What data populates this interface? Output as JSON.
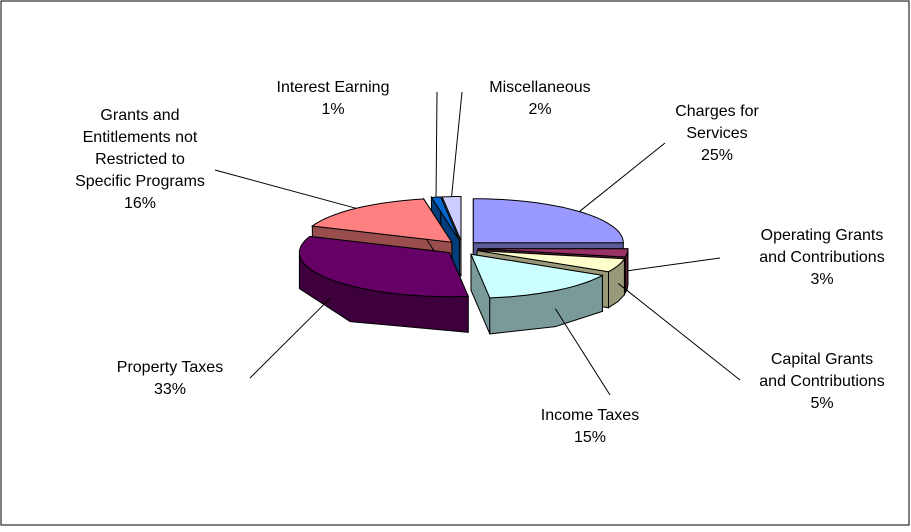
{
  "chart_data": {
    "type": "pie3d",
    "categories": [
      "Charges for Services",
      "Operating Grants and Contributions",
      "Capital Grants and Contributions",
      "Income Taxes",
      "Property Taxes",
      "Grants and Entitlements not Restricted to Specific Programs",
      "Interest Earning",
      "Miscellaneous"
    ],
    "values": [
      25,
      3,
      5,
      15,
      33,
      16,
      1,
      2
    ],
    "value_labels": [
      "25%",
      "3%",
      "5%",
      "15%",
      "33%",
      "16%",
      "1%",
      "2%"
    ],
    "colors": [
      "#9999ff",
      "#993366",
      "#ffffcc",
      "#ccffff",
      "#660066",
      "#ff8080",
      "#0066cc",
      "#ccccff"
    ]
  }
}
